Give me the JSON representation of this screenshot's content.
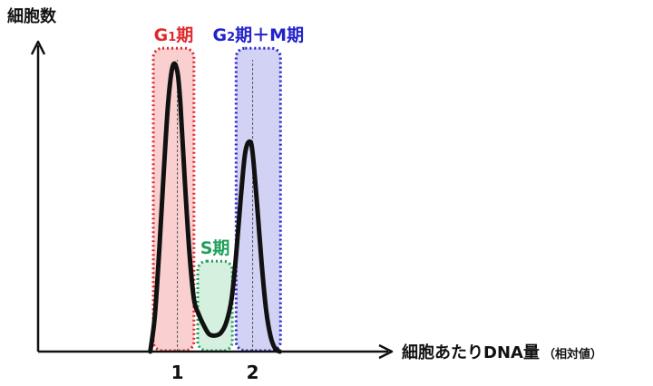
{
  "chart_data": {
    "type": "line",
    "ylabel": "細胞数",
    "xlabel": "細胞あたりDNA量",
    "xlabel_unit": "（相対値）",
    "x_ticks": [
      "1",
      "2"
    ],
    "x_tick_values": [
      1,
      2
    ],
    "xlim": [
      -0.85,
      3.8
    ],
    "ylim": [
      0,
      1.05
    ],
    "grid": false,
    "regions": [
      {
        "label": "G",
        "sub": "1",
        "suffix": "期",
        "x_range": [
          0.68,
          1.22
        ],
        "y_top": 1.04,
        "color": "#e0282b",
        "fill": "#f9d0cf"
      },
      {
        "label": "S",
        "sub": "",
        "suffix": "期",
        "x_range": [
          1.27,
          1.73
        ],
        "y_top": 0.31,
        "color": "#1ea05a",
        "fill": "#d5f0df"
      },
      {
        "label": "G",
        "sub": "2",
        "suffix": "期＋M期",
        "x_range": [
          1.78,
          2.37
        ],
        "y_top": 1.04,
        "color": "#2222cc",
        "fill": "#d2d2f5"
      }
    ],
    "series": [
      {
        "x": [
          0.64,
          0.7,
          0.76,
          0.82,
          0.88,
          0.94,
          1.0,
          1.04,
          1.1,
          1.16,
          1.22,
          1.28,
          1.35,
          1.42,
          1.5,
          1.58,
          1.65,
          1.72,
          1.78,
          1.84,
          1.9,
          1.96,
          2.0,
          2.06,
          2.12,
          2.18,
          2.24,
          2.3,
          2.36
        ],
        "y": [
          0.0,
          0.12,
          0.35,
          0.62,
          0.86,
          0.98,
          0.96,
          0.85,
          0.58,
          0.34,
          0.18,
          0.13,
          0.09,
          0.06,
          0.055,
          0.065,
          0.1,
          0.18,
          0.33,
          0.52,
          0.68,
          0.72,
          0.68,
          0.5,
          0.3,
          0.14,
          0.05,
          0.01,
          0.0
        ],
        "color": "#111111"
      }
    ],
    "peak_markers": [
      1.0,
      2.0
    ]
  }
}
